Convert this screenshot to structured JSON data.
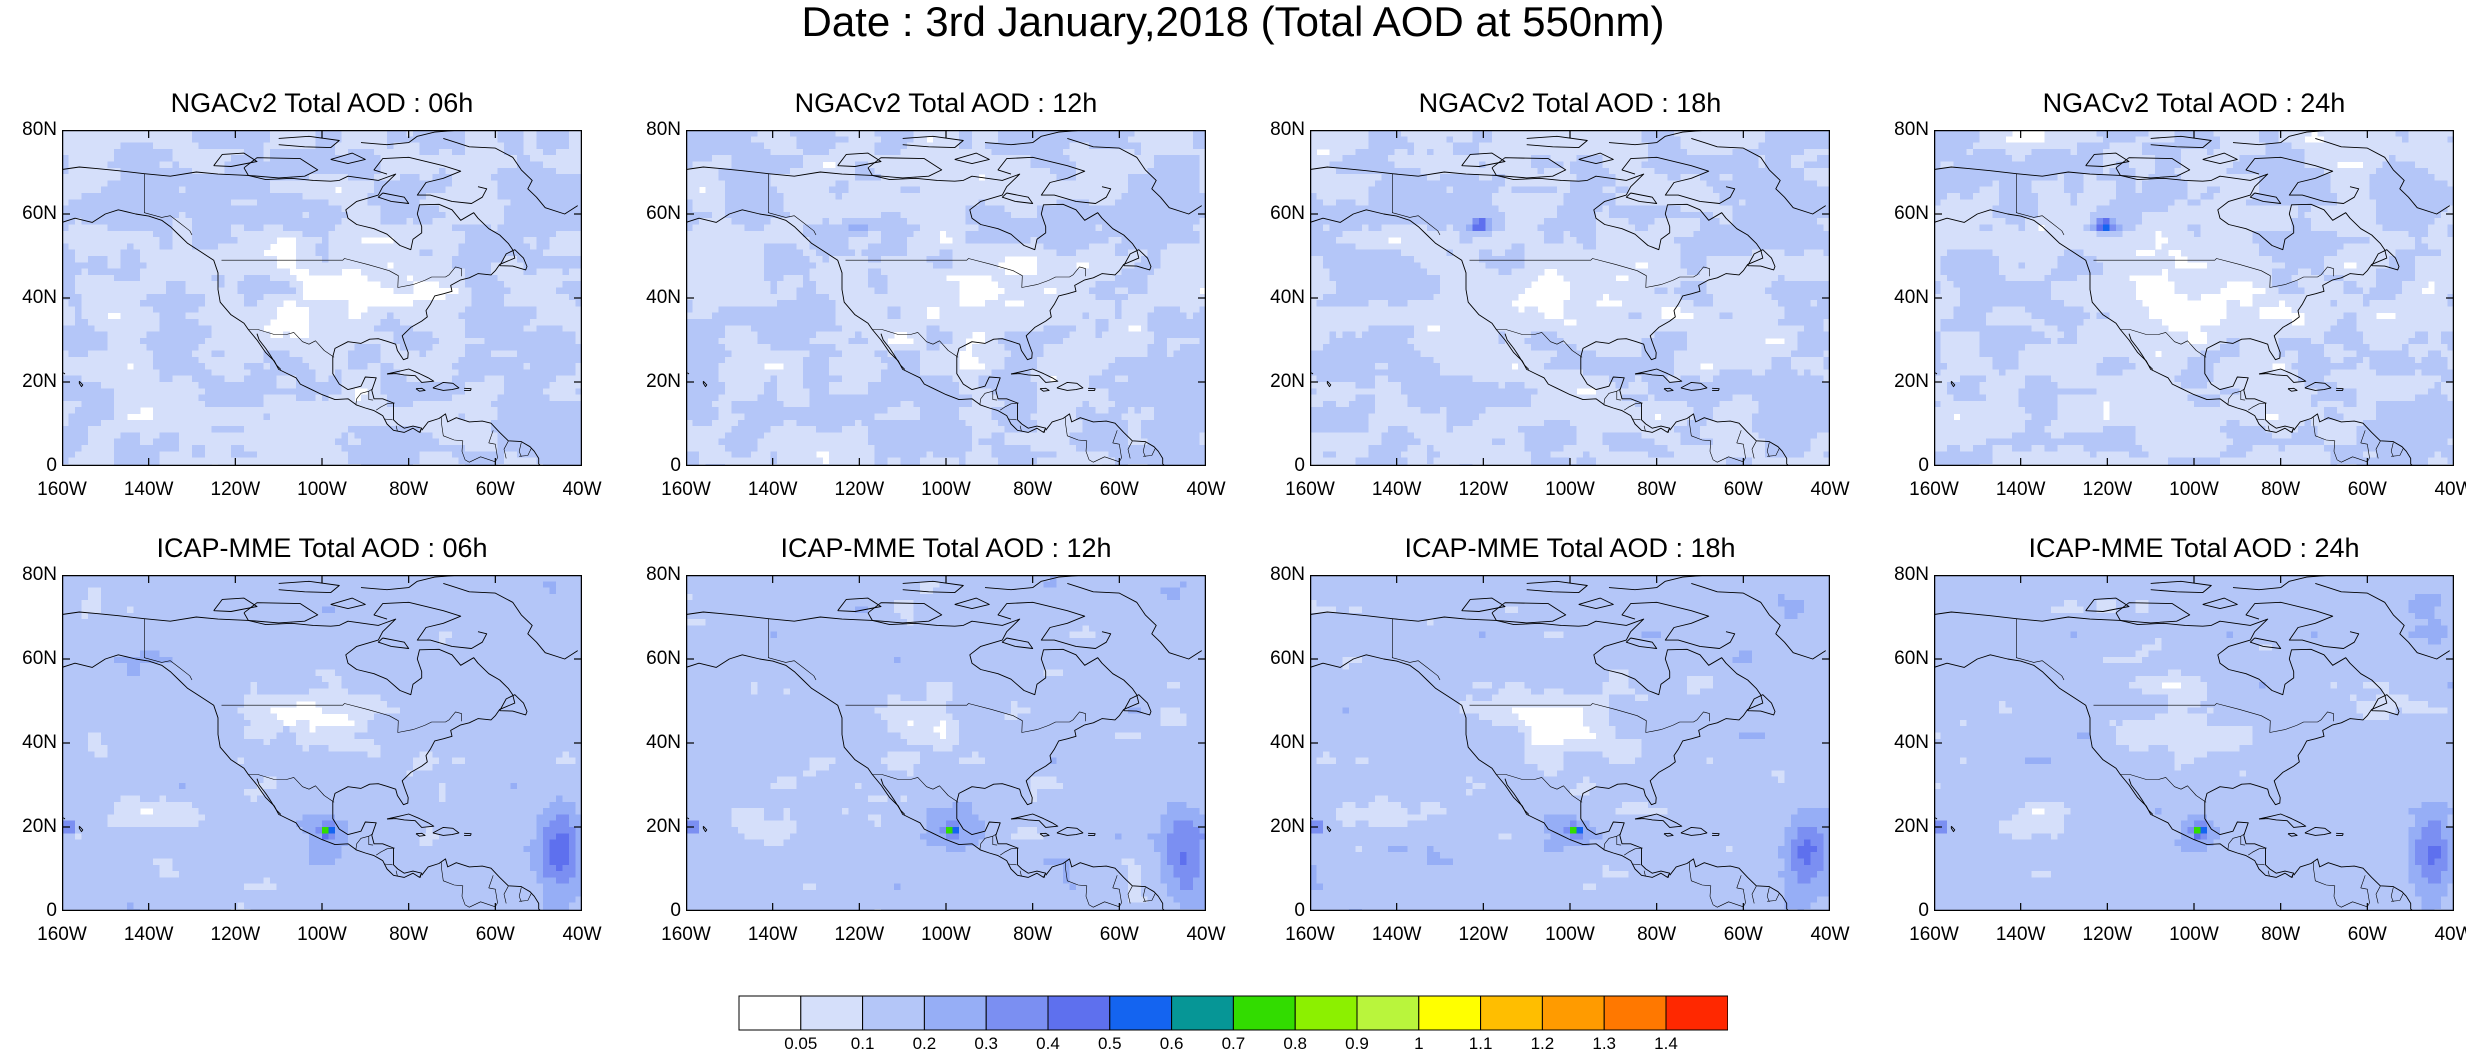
{
  "title": "Date : 3rd January,2018 (Total AOD at 550nm)",
  "panels": [
    {
      "title": "NGACv2 Total AOD : 06h",
      "model": "NGACv2",
      "hour": "06h"
    },
    {
      "title": "NGACv2 Total AOD : 12h",
      "model": "NGACv2",
      "hour": "12h"
    },
    {
      "title": "NGACv2 Total AOD : 18h",
      "model": "NGACv2",
      "hour": "18h"
    },
    {
      "title": "NGACv2 Total AOD : 24h",
      "model": "NGACv2",
      "hour": "24h"
    },
    {
      "title": "ICAP-MME Total AOD : 06h",
      "model": "ICAP-MME",
      "hour": "06h"
    },
    {
      "title": "ICAP-MME Total AOD : 12h",
      "model": "ICAP-MME",
      "hour": "12h"
    },
    {
      "title": "ICAP-MME Total AOD : 18h",
      "model": "ICAP-MME",
      "hour": "18h"
    },
    {
      "title": "ICAP-MME Total AOD : 24h",
      "model": "ICAP-MME",
      "hour": "24h"
    }
  ],
  "axes": {
    "lat_labels": [
      "80N",
      "60N",
      "40N",
      "20N",
      "0"
    ],
    "lat_values": [
      80,
      60,
      40,
      20,
      0
    ],
    "lon_labels": [
      "160W",
      "140W",
      "120W",
      "100W",
      "80W",
      "60W",
      "40W"
    ],
    "lon_values": [
      -160,
      -140,
      -120,
      -100,
      -80,
      -60,
      -40
    ],
    "lat_range": [
      0,
      80
    ],
    "lon_range": [
      -160,
      -40
    ]
  },
  "colorbar": {
    "labels": [
      "0.05",
      "0.1",
      "0.2",
      "0.3",
      "0.4",
      "0.5",
      "0.6",
      "0.7",
      "0.8",
      "0.9",
      "1",
      "1.1",
      "1.2",
      "1.3",
      "1.4"
    ],
    "colors": [
      "#ffffff",
      "#d5dffa",
      "#b4c6f8",
      "#96aef6",
      "#7b8ff2",
      "#5e70ee",
      "#1464f0",
      "#069696",
      "#32dc00",
      "#8cf000",
      "#b9f53c",
      "#ffff00",
      "#ffbe00",
      "#ff9b00",
      "#ff7800",
      "#ff2800"
    ]
  }
}
